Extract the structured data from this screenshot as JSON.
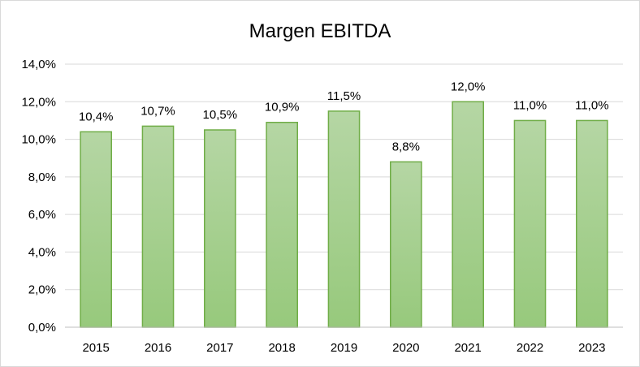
{
  "chart_data": {
    "type": "bar",
    "title": "Margen EBITDA",
    "xlabel": "",
    "ylabel": "",
    "categories": [
      "2015",
      "2016",
      "2017",
      "2018",
      "2019",
      "2020",
      "2021",
      "2022",
      "2023"
    ],
    "values": [
      10.4,
      10.7,
      10.5,
      10.9,
      11.5,
      8.8,
      12.0,
      11.0,
      11.0
    ],
    "data_labels": [
      "10,4%",
      "10,7%",
      "10,5%",
      "10,9%",
      "11,5%",
      "8,8%",
      "12,0%",
      "11,0%",
      "11,0%"
    ],
    "ylim": [
      0,
      14
    ],
    "yticks": [
      0,
      2,
      4,
      6,
      8,
      10,
      12,
      14
    ],
    "ytick_labels": [
      "0,0%",
      "2,0%",
      "4,0%",
      "6,0%",
      "8,0%",
      "10,0%",
      "12,0%",
      "14,0%"
    ],
    "grid": true,
    "legend": "none",
    "colors": {
      "bar_fill_top": "#b5d6a4",
      "bar_fill_bottom": "#97c97c",
      "bar_stroke": "#70ad47",
      "gridline": "#d9d9d9"
    }
  }
}
